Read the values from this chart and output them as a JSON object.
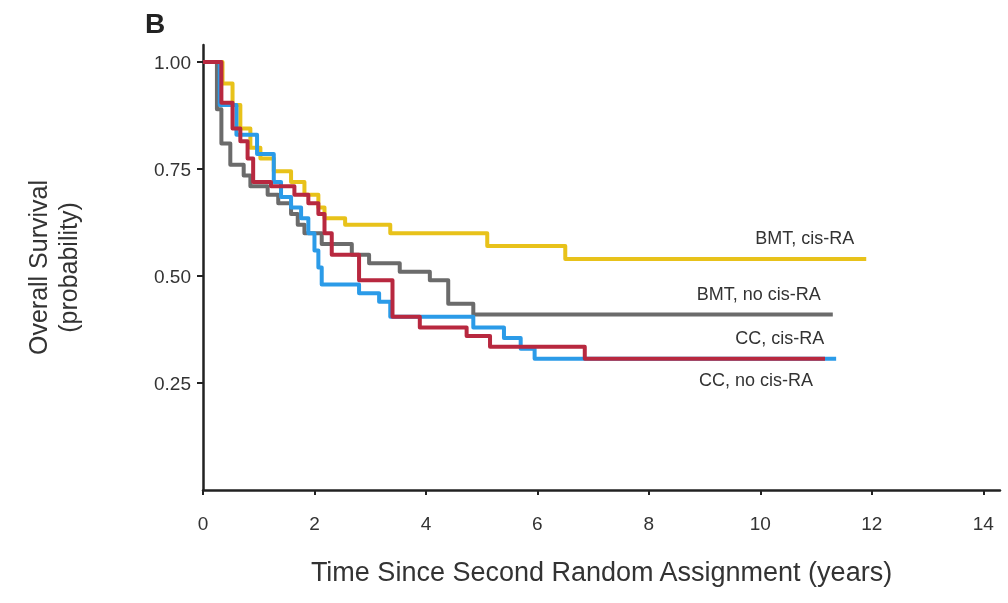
{
  "chart_data": {
    "type": "step",
    "title": "B",
    "xlabel": "Time Since Second Random Assignment (years)",
    "ylabel": "Overall Survival\n(probability)",
    "xlim": [
      0,
      14.3
    ],
    "ylim": [
      0,
      1.04
    ],
    "xticks": [
      0,
      2,
      4,
      6,
      8,
      10,
      12,
      14
    ],
    "yticks": [
      {
        "value": 0.25,
        "label": "0.25"
      },
      {
        "value": 0.5,
        "label": "0.50"
      },
      {
        "value": 0.75,
        "label": "0.75"
      },
      {
        "value": 1.0,
        "label": "1.00"
      }
    ],
    "grid": false,
    "legend": false,
    "series": [
      {
        "name": "BMT, cis-RA",
        "color": "#e8c21a",
        "x": [
          0,
          0.35,
          0.53,
          0.67,
          0.85,
          1.03,
          1.27,
          1.58,
          1.82,
          2.07,
          2.18,
          2.55,
          3.36,
          5.1,
          6.5,
          11.9
        ],
        "values": [
          1.0,
          0.95,
          0.9,
          0.845,
          0.8,
          0.775,
          0.745,
          0.72,
          0.69,
          0.66,
          0.635,
          0.62,
          0.6,
          0.57,
          0.54,
          0.54
        ]
      },
      {
        "name": "BMT, no cis-RA",
        "color": "#6b6b6b",
        "x": [
          0,
          0.25,
          0.33,
          0.49,
          0.73,
          0.85,
          1.16,
          1.35,
          1.58,
          1.7,
          1.82,
          2.13,
          2.67,
          2.98,
          3.53,
          4.07,
          4.4,
          4.85,
          11.3
        ],
        "values": [
          1.0,
          0.89,
          0.81,
          0.76,
          0.735,
          0.71,
          0.69,
          0.67,
          0.645,
          0.62,
          0.6,
          0.575,
          0.55,
          0.53,
          0.51,
          0.49,
          0.435,
          0.41,
          0.41
        ]
      },
      {
        "name": "CC, cis-RA",
        "color": "#2b9be8",
        "x": [
          0,
          0.3,
          0.6,
          0.97,
          1.27,
          1.4,
          1.58,
          1.76,
          1.89,
          2.0,
          2.07,
          2.13,
          2.8,
          3.16,
          3.36,
          4.85,
          5.4,
          5.7,
          5.95,
          11.36
        ],
        "values": [
          1.0,
          0.9,
          0.83,
          0.785,
          0.72,
          0.685,
          0.66,
          0.635,
          0.6,
          0.56,
          0.52,
          0.48,
          0.46,
          0.44,
          0.405,
          0.38,
          0.355,
          0.33,
          0.307,
          0.307
        ]
      },
      {
        "name": "CC, no cis-RA",
        "color": "#b8283f",
        "x": [
          0,
          0.33,
          0.53,
          0.67,
          0.8,
          0.9,
          1.22,
          1.64,
          1.89,
          2.07,
          2.18,
          2.31,
          2.8,
          3.4,
          3.89,
          4.73,
          5.15,
          6.85,
          11.16
        ],
        "values": [
          1.0,
          0.905,
          0.845,
          0.815,
          0.775,
          0.72,
          0.71,
          0.69,
          0.67,
          0.645,
          0.6,
          0.55,
          0.49,
          0.405,
          0.38,
          0.36,
          0.335,
          0.307,
          0.307
        ]
      }
    ]
  }
}
